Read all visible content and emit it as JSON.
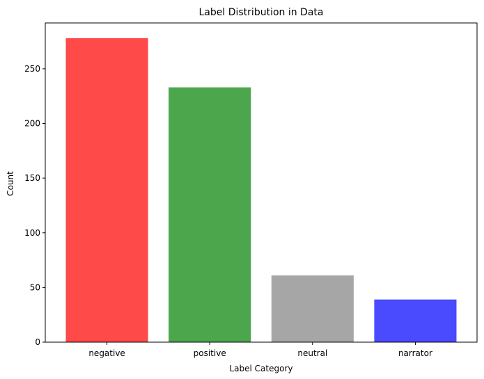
{
  "chart_data": {
    "type": "bar",
    "title": "Label Distribution in Data",
    "xlabel": "Label Category",
    "ylabel": "Count",
    "categories": [
      "negative",
      "positive",
      "neutral",
      "narrator"
    ],
    "values": [
      278,
      233,
      61,
      39
    ],
    "colors": [
      "#ff4a4a",
      "#4ca64c",
      "#a6a6a6",
      "#4a4aff"
    ],
    "ylim": [
      0,
      291.9
    ],
    "yticks": [
      0,
      50,
      100,
      150,
      200,
      250
    ],
    "grid": false
  }
}
